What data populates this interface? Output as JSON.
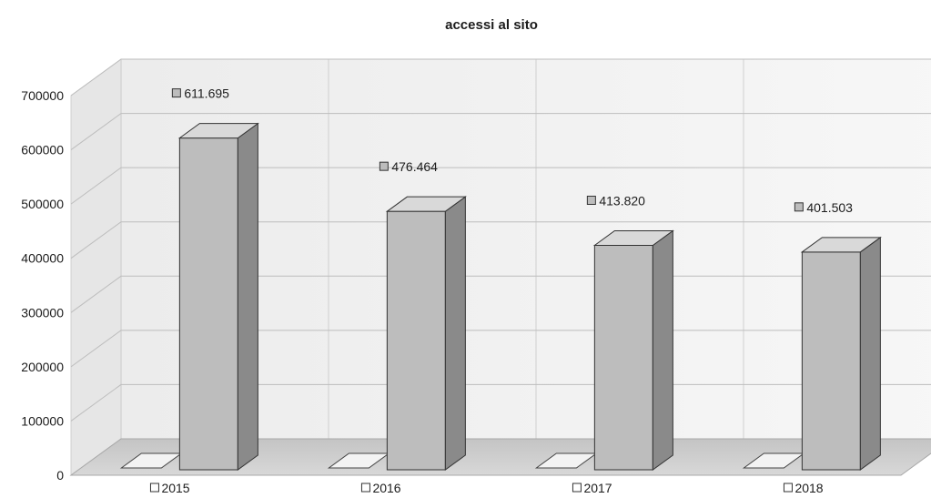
{
  "chart_data": {
    "type": "bar",
    "title": "accessi al sito",
    "categories": [
      "2015",
      "2016",
      "2017",
      "2018"
    ],
    "values": [
      611695,
      476464,
      413820,
      401503
    ],
    "data_labels": [
      "611.695",
      "476.464",
      "413.820",
      "401.503"
    ],
    "y_ticks": [
      "0",
      "100000",
      "200000",
      "300000",
      "400000",
      "500000",
      "600000",
      "700000"
    ],
    "ylim": [
      0,
      700000
    ],
    "grid": true,
    "style": "3d-column",
    "colors": {
      "bar_front": "#bdbdbd",
      "bar_side": "#8a8a8a",
      "bar_top": "#d9d9d9",
      "floor": "#cfcfcf",
      "walls": "#f1f1f1"
    }
  }
}
